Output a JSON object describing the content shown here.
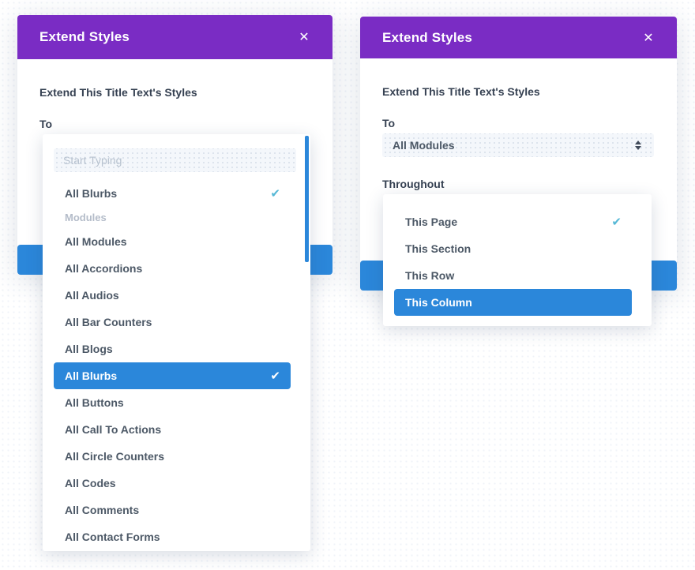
{
  "colors": {
    "header_purple": "#7a2cc4",
    "accent_blue": "#2b87da",
    "check_teal": "#56b8d6",
    "item_text": "#4c5866",
    "label_text": "#364152",
    "category_text": "#b4bcc9",
    "input_bg": "#f4f7fb"
  },
  "icons": {
    "close": "✕",
    "check": "✔",
    "select_arrows": "up-down-arrows"
  },
  "left_modal": {
    "title": "Extend Styles",
    "description": "Extend This Title Text's Styles",
    "to_label": "To",
    "dropdown": {
      "search_placeholder": "Start Typing",
      "items": [
        {
          "label": "All Blurbs",
          "checked": true,
          "active": false,
          "category": false
        },
        {
          "label": "Modules",
          "checked": false,
          "active": false,
          "category": true
        },
        {
          "label": "All Modules",
          "checked": false,
          "active": false,
          "category": false
        },
        {
          "label": "All Accordions",
          "checked": false,
          "active": false,
          "category": false
        },
        {
          "label": "All Audios",
          "checked": false,
          "active": false,
          "category": false
        },
        {
          "label": "All Bar Counters",
          "checked": false,
          "active": false,
          "category": false
        },
        {
          "label": "All Blogs",
          "checked": false,
          "active": false,
          "category": false
        },
        {
          "label": "All Blurbs",
          "checked": true,
          "active": true,
          "category": false
        },
        {
          "label": "All Buttons",
          "checked": false,
          "active": false,
          "category": false
        },
        {
          "label": "All Call To Actions",
          "checked": false,
          "active": false,
          "category": false
        },
        {
          "label": "All Circle Counters",
          "checked": false,
          "active": false,
          "category": false
        },
        {
          "label": "All Codes",
          "checked": false,
          "active": false,
          "category": false
        },
        {
          "label": "All Comments",
          "checked": false,
          "active": false,
          "category": false
        },
        {
          "label": "All Contact Forms",
          "checked": false,
          "active": false,
          "category": false
        }
      ]
    }
  },
  "right_modal": {
    "title": "Extend Styles",
    "description": "Extend This Title Text's Styles",
    "to_label": "To",
    "to_value": "All Modules",
    "throughout_label": "Throughout",
    "dropdown": {
      "items": [
        {
          "label": "This Page",
          "checked": true,
          "active": false,
          "category": false
        },
        {
          "label": "This Section",
          "checked": false,
          "active": false,
          "category": false
        },
        {
          "label": "This Row",
          "checked": false,
          "active": false,
          "category": false
        },
        {
          "label": "This Column",
          "checked": false,
          "active": true,
          "category": false
        }
      ]
    }
  }
}
